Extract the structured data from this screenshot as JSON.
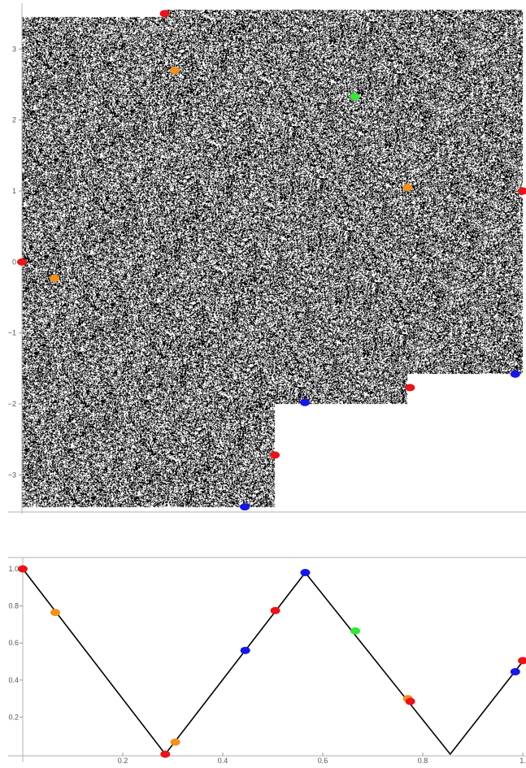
{
  "colors": {
    "red": "#e8141c",
    "orange": "#f39019",
    "blue": "#1616e6",
    "green": "#33e633",
    "line": "#000000",
    "noise": "#000000"
  },
  "chart_data": [
    {
      "type": "scatter",
      "description_note": "",
      "xlim": [
        0,
        1
      ],
      "ylim": [
        -3.5,
        3.6
      ],
      "yticks": [
        -3,
        -2,
        -1,
        0,
        1,
        2,
        3
      ],
      "ytick_labels": [
        "−3",
        "−2",
        "−1",
        "0",
        "1",
        "2",
        "3"
      ],
      "xticks": [],
      "filled_region_steps": [
        {
          "x_start": 0.0,
          "x_end": 0.285,
          "y_low": -3.45,
          "y_high": 3.45
        },
        {
          "x_start": 0.285,
          "x_end": 0.505,
          "y_low": -3.45,
          "y_high": 3.55
        },
        {
          "x_start": 0.505,
          "x_end": 0.77,
          "y_low": -2.0,
          "y_high": 3.55
        },
        {
          "x_start": 0.77,
          "x_end": 1.0,
          "y_low": -1.58,
          "y_high": 3.55
        }
      ],
      "points": [
        {
          "x": 0.285,
          "y": 3.5,
          "color": "red"
        },
        {
          "x": 0.305,
          "y": 2.7,
          "color": "orange"
        },
        {
          "x": 0.665,
          "y": 2.33,
          "color": "green"
        },
        {
          "x": 0.77,
          "y": 1.05,
          "color": "orange"
        },
        {
          "x": 1.0,
          "y": 1.0,
          "color": "red"
        },
        {
          "x": 0.0,
          "y": 0.0,
          "color": "red"
        },
        {
          "x": 0.065,
          "y": -0.23,
          "color": "orange"
        },
        {
          "x": 0.985,
          "y": -1.58,
          "color": "blue"
        },
        {
          "x": 0.775,
          "y": -1.77,
          "color": "red"
        },
        {
          "x": 0.565,
          "y": -1.98,
          "color": "blue"
        },
        {
          "x": 0.505,
          "y": -2.72,
          "color": "red"
        },
        {
          "x": 0.445,
          "y": -3.45,
          "color": "blue"
        }
      ]
    },
    {
      "type": "line",
      "xlim": [
        0,
        1
      ],
      "ylim": [
        0,
        1.0
      ],
      "xticks": [
        0.2,
        0.4,
        0.6,
        0.8,
        1.0
      ],
      "xtick_labels": [
        "0.2",
        "0.4",
        "0.6",
        "0.8",
        "1."
      ],
      "yticks": [
        0.2,
        0.4,
        0.6,
        0.8,
        1.0
      ],
      "ytick_labels": [
        "0.2",
        "0.4",
        "0.6",
        "0.8",
        "1.0"
      ],
      "line": {
        "x": [
          0.0,
          0.285,
          0.565,
          0.855,
          1.0
        ],
        "y": [
          1.0,
          0.0,
          0.98,
          0.0,
          0.5
        ]
      },
      "points": [
        {
          "x": 0.0,
          "y": 1.0,
          "color": "red"
        },
        {
          "x": 0.065,
          "y": 0.765,
          "color": "orange"
        },
        {
          "x": 0.285,
          "y": 0.0,
          "color": "red"
        },
        {
          "x": 0.305,
          "y": 0.065,
          "color": "orange"
        },
        {
          "x": 0.445,
          "y": 0.56,
          "color": "blue"
        },
        {
          "x": 0.505,
          "y": 0.775,
          "color": "red"
        },
        {
          "x": 0.565,
          "y": 0.98,
          "color": "blue"
        },
        {
          "x": 0.665,
          "y": 0.665,
          "color": "green"
        },
        {
          "x": 0.77,
          "y": 0.3,
          "color": "orange"
        },
        {
          "x": 0.775,
          "y": 0.285,
          "color": "red"
        },
        {
          "x": 0.985,
          "y": 0.445,
          "color": "blue"
        },
        {
          "x": 1.0,
          "y": 0.505,
          "color": "red"
        }
      ]
    }
  ]
}
